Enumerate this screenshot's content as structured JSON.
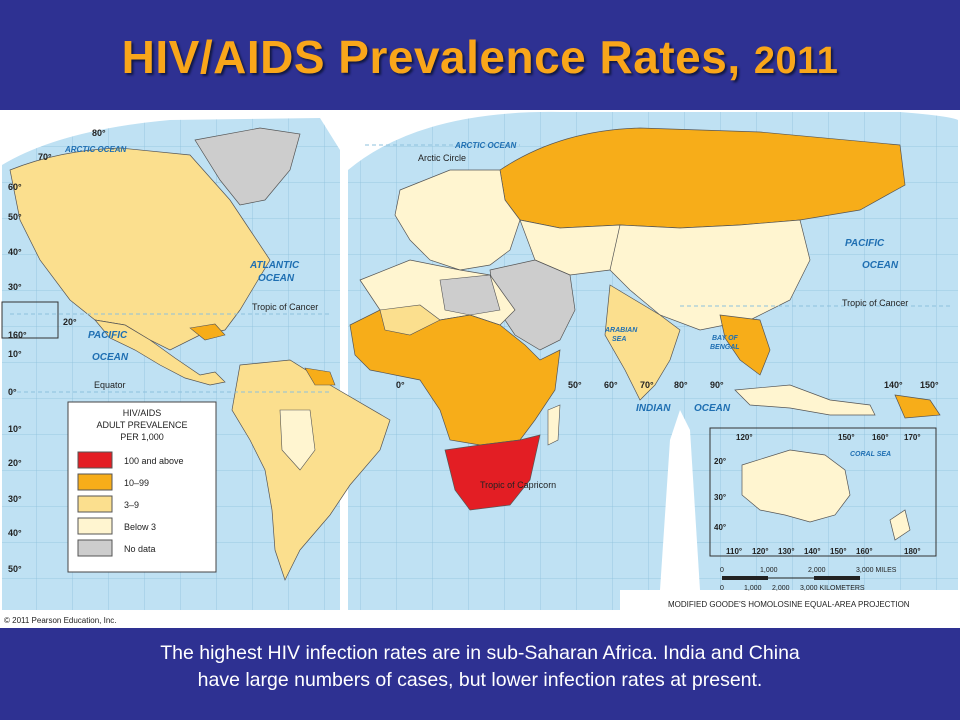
{
  "slide": {
    "title_main": "HIV/AIDS Prevalence Rates,",
    "title_year": "2011",
    "caption_line1": "The highest HIV infection rates are in sub-Saharan Africa. India and China",
    "caption_line2": "have large numbers of cases, but lower infection rates at present."
  },
  "map": {
    "copyright": "© 2011 Pearson Education, Inc.",
    "projection_label": "MODIFIED GOODE'S HOMOLOSINE EQUAL-AREA PROJECTION",
    "ocean_labels": {
      "arctic_west": "ARCTIC OCEAN",
      "arctic_east": "ARCTIC OCEAN",
      "atlantic_1": "ATLANTIC",
      "atlantic_2": "OCEAN",
      "pacific_west_1": "PACIFIC",
      "pacific_west_2": "OCEAN",
      "pacific_east_1": "PACIFIC",
      "pacific_east_2": "OCEAN",
      "indian_1": "INDIAN",
      "indian_2": "OCEAN",
      "arabian_1": "ARABIAN",
      "arabian_2": "SEA",
      "bengal_1": "BAY OF",
      "bengal_2": "BENGAL",
      "coral": "CORAL SEA"
    },
    "line_labels": {
      "arctic_circle": "Arctic Circle",
      "tropic_cancer_west": "Tropic of Cancer",
      "tropic_cancer_east": "Tropic of Cancer",
      "equator": "Equator",
      "tropic_capricorn": "Tropic of Capricorn"
    },
    "latitude_labels": [
      "80°",
      "70°",
      "60°",
      "50°",
      "40°",
      "30°",
      "20°",
      "10°",
      "0°",
      "10°",
      "20°",
      "30°",
      "40°",
      "50°",
      "160°"
    ],
    "longitude_labels": [
      "0°",
      "50°",
      "60°",
      "70°",
      "80°",
      "90°",
      "140°",
      "150°"
    ],
    "inset": {
      "top_labels": [
        "120°",
        "150°",
        "160°",
        "170°"
      ],
      "bottom_labels": [
        "110°",
        "120°",
        "130°",
        "140°",
        "150°",
        "160°",
        "180°"
      ],
      "side_labels": [
        "20°",
        "30°",
        "40°"
      ]
    },
    "scale_bar": {
      "miles": [
        "0",
        "1,000",
        "2,000",
        "3,000 MILES"
      ],
      "km": [
        "0",
        "1,000",
        "2,000",
        "3,000 KILOMETERS"
      ]
    },
    "legend": {
      "title_1": "HIV/AIDS",
      "title_2": "ADULT PREVALENCE",
      "title_3": "PER 1,000",
      "items": [
        {
          "label": "100 and above",
          "color": "#e31e24"
        },
        {
          "label": "10–99",
          "color": "#f7ad19"
        },
        {
          "label": "3–9",
          "color": "#fbdf8e"
        },
        {
          "label": "Below 3",
          "color": "#fff5d0"
        },
        {
          "label": "No data",
          "color": "#cdcdcd"
        }
      ]
    },
    "colors": {
      "ocean": "#bfe1f3",
      "grid": "#8ec1dc",
      "border": "#555555"
    }
  }
}
